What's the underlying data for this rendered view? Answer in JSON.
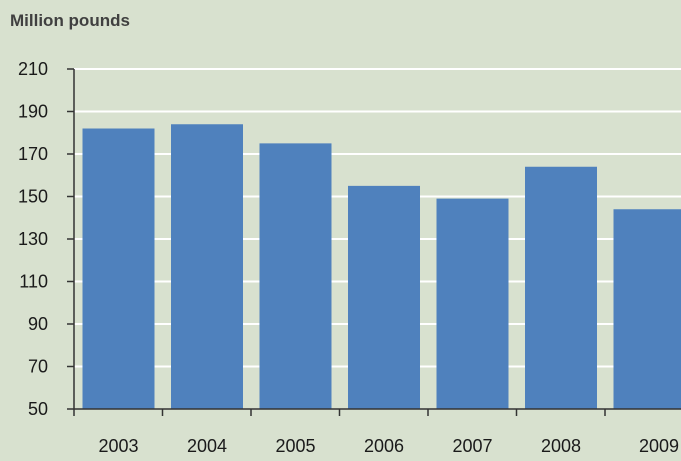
{
  "chart_data": {
    "type": "bar",
    "title": "",
    "ylabel": "Million pounds",
    "xlabel": "",
    "categories": [
      "2003",
      "2004",
      "2005",
      "2006",
      "2007",
      "2008",
      "2009"
    ],
    "values": [
      182,
      184,
      175,
      155,
      149,
      164,
      144
    ],
    "ylim": [
      50,
      210
    ],
    "yticks": [
      50,
      70,
      90,
      110,
      130,
      150,
      170,
      190,
      210
    ],
    "grid": true,
    "legend": "none",
    "colors": {
      "bar": "#4f81bd",
      "background": "#d8e1cf",
      "grid": "#ffffff",
      "axis": "#333333"
    }
  }
}
